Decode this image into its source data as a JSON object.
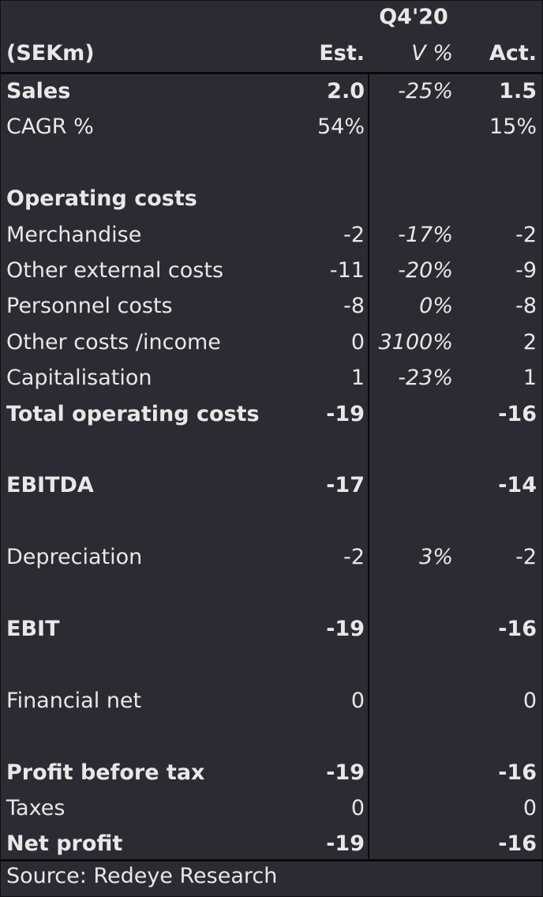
{
  "header": {
    "period": "Q4'20",
    "unit_label": "(SEKm)",
    "col_est": "Est.",
    "col_var": "V %",
    "col_act": "Act."
  },
  "rows": [
    {
      "label": "Sales",
      "est": "2.0",
      "var": "-25%",
      "act": "1.5",
      "bold": true
    },
    {
      "label": "CAGR %",
      "est": "54%",
      "var": "",
      "act": "15%",
      "bold": false
    },
    {
      "label": "",
      "est": "",
      "var": "",
      "act": "",
      "bold": false
    },
    {
      "label": "Operating costs",
      "est": "",
      "var": "",
      "act": "",
      "bold": true
    },
    {
      "label": "Merchandise",
      "est": "-2",
      "var": "-17%",
      "act": "-2",
      "bold": false
    },
    {
      "label": "Other external costs",
      "est": "-11",
      "var": "-20%",
      "act": "-9",
      "bold": false
    },
    {
      "label": "Personnel costs",
      "est": "-8",
      "var": "0%",
      "act": "-8",
      "bold": false
    },
    {
      "label": "Other costs /income",
      "est": "0",
      "var": "3100%",
      "act": "2",
      "bold": false
    },
    {
      "label": "Capitalisation",
      "est": "1",
      "var": "-23%",
      "act": "1",
      "bold": false
    },
    {
      "label": "Total operating costs",
      "est": "-19",
      "var": "",
      "act": "-16",
      "bold": true
    },
    {
      "label": "",
      "est": "",
      "var": "",
      "act": "",
      "bold": false
    },
    {
      "label": "EBITDA",
      "est": "-17",
      "var": "",
      "act": "-14",
      "bold": true
    },
    {
      "label": "",
      "est": "",
      "var": "",
      "act": "",
      "bold": false
    },
    {
      "label": "Depreciation",
      "est": "-2",
      "var": "3%",
      "act": "-2",
      "bold": false
    },
    {
      "label": "",
      "est": "",
      "var": "",
      "act": "",
      "bold": false
    },
    {
      "label": "EBIT",
      "est": "-19",
      "var": "",
      "act": "-16",
      "bold": true
    },
    {
      "label": "",
      "est": "",
      "var": "",
      "act": "",
      "bold": false
    },
    {
      "label": "Financial net",
      "est": "0",
      "var": "",
      "act": "0",
      "bold": false
    },
    {
      "label": "",
      "est": "",
      "var": "",
      "act": "",
      "bold": false
    },
    {
      "label": "Profit before tax",
      "est": "-19",
      "var": "",
      "act": "-16",
      "bold": true
    },
    {
      "label": "Taxes",
      "est": "0",
      "var": "",
      "act": "0",
      "bold": false
    },
    {
      "label": "Net profit",
      "est": "-19",
      "var": "",
      "act": "-16",
      "bold": true
    }
  ],
  "footer": {
    "source": "Source: Redeye Research"
  }
}
